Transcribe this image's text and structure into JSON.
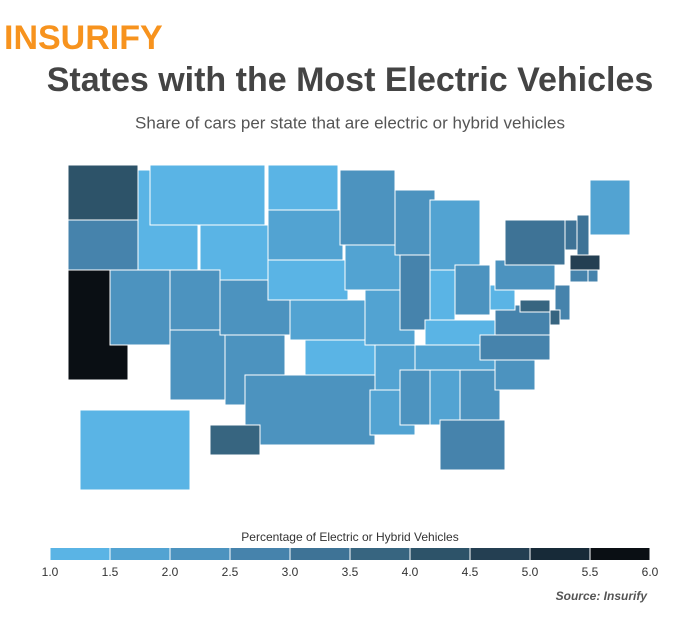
{
  "brand": "INSURIFY",
  "chart_data": {
    "type": "choropleth",
    "title": "States with the Most Electric Vehicles",
    "subtitle": "Share of cars per state that are electric or hybrid vehicles",
    "legend_title": "Percentage of Electric or Hybrid Vehicles",
    "values": [
      4.2,
      2.6,
      6.0,
      1.4,
      2.3,
      1.3,
      1.2,
      2.3,
      2.2,
      2.5,
      2.3,
      1.2,
      1.7,
      1.5,
      1.8,
      1.4,
      2.5,
      2.3,
      1.9,
      1.6,
      1.7,
      2.0,
      2.1,
      3.0,
      1.9,
      1.5,
      2.2,
      1.4,
      1.9,
      2.2,
      1.9,
      2.5,
      2.6,
      2.3,
      2.8,
      3.0,
      1.4,
      2.3,
      3.5,
      3.2,
      3.3,
      2.0,
      4.8,
      2.7,
      2.6,
      3.0,
      3.7,
      3.8,
      1.2,
      3.6
    ],
    "scale_ticks": [
      {
        "value": 1,
        "label": "1.0"
      },
      {
        "value": 1.5,
        "label": "1.5"
      },
      {
        "value": 2,
        "label": "2.0"
      },
      {
        "value": 2.5,
        "label": "2.5"
      },
      {
        "value": 3,
        "label": "3.0"
      },
      {
        "value": 3.5,
        "label": "3.5"
      },
      {
        "value": 4,
        "label": "4.0"
      },
      {
        "value": 4.5,
        "label": "4.5"
      },
      {
        "value": 5,
        "label": "5.0"
      },
      {
        "value": 5.5,
        "label": "5.5"
      },
      {
        "value": 6,
        "label": "6.0"
      }
    ],
    "scale_colors": [
      "#5ab4e5",
      "#52a3d2",
      "#4c93bf",
      "#4683ac",
      "#3e7396",
      "#376580",
      "#2d5369",
      "#243f52",
      "#172a38",
      "#0a0f14"
    ],
    "source": "Source: Insurify"
  }
}
